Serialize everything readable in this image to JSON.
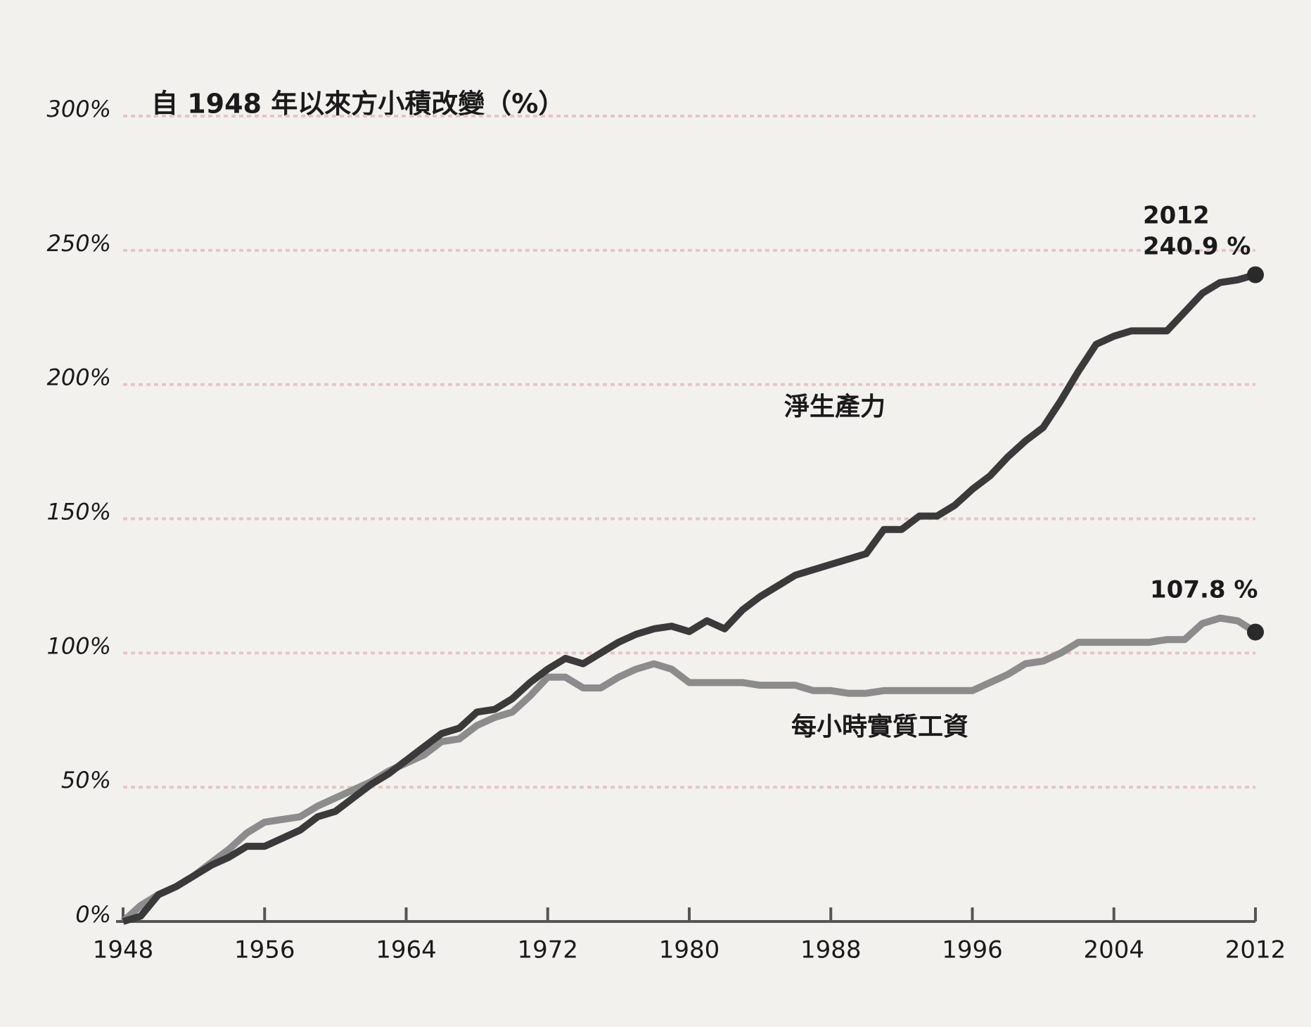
{
  "chart_data": {
    "type": "line",
    "title": "自 1948 年以來方小積改變（%）",
    "x": [
      1948,
      1949,
      1950,
      1951,
      1952,
      1953,
      1954,
      1955,
      1956,
      1957,
      1958,
      1959,
      1960,
      1961,
      1962,
      1963,
      1964,
      1965,
      1966,
      1967,
      1968,
      1969,
      1970,
      1971,
      1972,
      1973,
      1974,
      1975,
      1976,
      1977,
      1978,
      1979,
      1980,
      1981,
      1982,
      1983,
      1984,
      1985,
      1986,
      1987,
      1988,
      1989,
      1990,
      1991,
      1992,
      1993,
      1994,
      1995,
      1996,
      1997,
      1998,
      1999,
      2000,
      2001,
      2002,
      2003,
      2004,
      2005,
      2006,
      2007,
      2008,
      2009,
      2010,
      2011,
      2012
    ],
    "series": [
      {
        "name": "淨生產力",
        "color": "#3a3a3a",
        "values": [
          0,
          2,
          10,
          13,
          17,
          21,
          24,
          28,
          28,
          31,
          34,
          39,
          41,
          46,
          51,
          55,
          60,
          65,
          70,
          72,
          78,
          79,
          83,
          89,
          94,
          98,
          96,
          100,
          104,
          107,
          109,
          110,
          108,
          112,
          109,
          116,
          121,
          125,
          129,
          131,
          133,
          135,
          137,
          146,
          146,
          151,
          151,
          155,
          161,
          166,
          173,
          179,
          184,
          194,
          205,
          215,
          218,
          220,
          220,
          220,
          227,
          234,
          238,
          239,
          240.9
        ]
      },
      {
        "name": "每小時實質工資",
        "color": "#8c8c8c",
        "values": [
          0,
          6,
          10,
          13,
          17,
          22,
          27,
          33,
          37,
          38,
          39,
          43,
          46,
          49,
          52,
          56,
          59,
          62,
          67,
          68,
          73,
          76,
          78,
          84,
          91,
          91,
          87,
          87,
          91,
          94,
          96,
          94,
          89,
          89,
          89,
          89,
          88,
          88,
          88,
          86,
          86,
          85,
          85,
          86,
          86,
          86,
          86,
          86,
          86,
          89,
          92,
          96,
          97,
          100,
          104,
          104,
          104,
          104,
          104,
          105,
          105,
          111,
          113,
          112,
          107.8
        ]
      }
    ],
    "xlim": [
      1948,
      2012
    ],
    "xticks": [
      1948,
      1956,
      1964,
      1972,
      1980,
      1988,
      1996,
      2004,
      2012
    ],
    "ylim": [
      0,
      300
    ],
    "yticks": [
      {
        "value": 0,
        "label": "0%"
      },
      {
        "value": 50,
        "label": "50%"
      },
      {
        "value": 100,
        "label": "100%"
      },
      {
        "value": 150,
        "label": "150%"
      },
      {
        "value": 200,
        "label": "200%"
      },
      {
        "value": 250,
        "label": "250%"
      },
      {
        "value": 300,
        "label": "300%"
      }
    ],
    "grid": true,
    "annotations": [
      "2012",
      "240.9 %",
      "107.8 %"
    ]
  }
}
